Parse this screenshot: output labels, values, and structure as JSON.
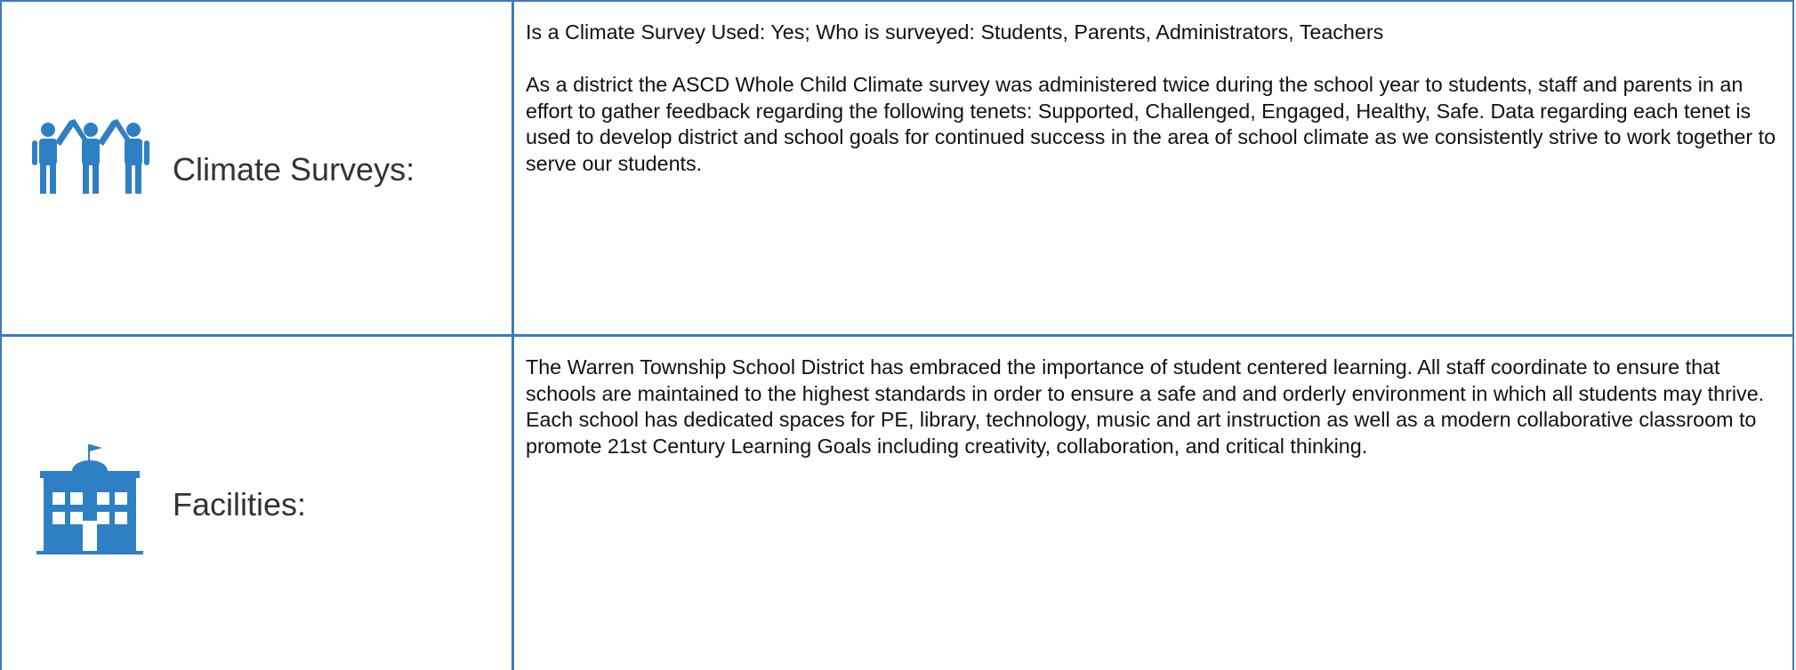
{
  "rows": [
    {
      "label": "Climate Surveys:",
      "paragraphs": [
        "Is a Climate Survey Used: Yes; Who is surveyed: Students, Parents, Administrators, Teachers",
        "As a district the ASCD Whole Child Climate survey was administered twice during the school year to students, staff and parents in an effort to gather feedback regarding the following tenets: Supported, Challenged, Engaged, Healthy, Safe. Data regarding each tenet is used to develop district and school goals for continued success in the area of school climate as we consistently strive to work together to serve our students."
      ]
    },
    {
      "label": "Facilities:",
      "paragraphs": [
        "The Warren Township School District has embraced the importance of student centered learning. All staff coordinate to ensure that schools are maintained to the highest standards in order to ensure a safe and and orderly environment in which all students may thrive. Each school has dedicated spaces for PE, library, technology, music and art instruction as well as a modern collaborative classroom to promote 21st Century Learning Goals including creativity, collaboration, and critical thinking."
      ]
    }
  ]
}
